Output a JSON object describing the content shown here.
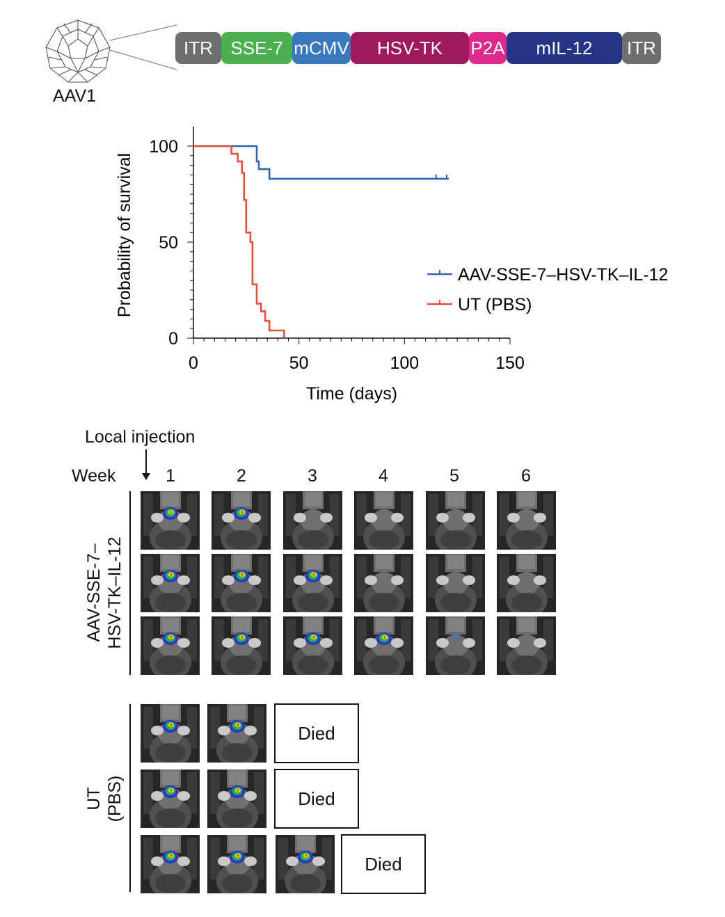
{
  "vector": {
    "capsid_label": "AAV1",
    "segments": [
      {
        "label": "ITR",
        "color": "#6d6e70"
      },
      {
        "label": "SSE-7",
        "color": "#4cb050"
      },
      {
        "label": "mCMV",
        "color": "#3a78bd"
      },
      {
        "label": "HSV-TK",
        "color": "#9d1a5e"
      },
      {
        "label": "P2A",
        "color": "#dd2a8d"
      },
      {
        "label": "mIL-12",
        "color": "#263486"
      },
      {
        "label": "ITR",
        "color": "#6d6e70"
      }
    ]
  },
  "chart_data": {
    "type": "line",
    "subtype": "kaplan-meier",
    "xlabel": "Time (days)",
    "ylabel": "Probability of survival",
    "xlim": [
      0,
      150
    ],
    "ylim": [
      0,
      100
    ],
    "xticks": [
      0,
      50,
      100,
      150
    ],
    "yticks": [
      0,
      50,
      100
    ],
    "legend_position": "right",
    "series": [
      {
        "name": "AAV-SSE-7–HSV-TK–IL-12",
        "color": "#3364ae",
        "steps": [
          [
            0,
            100
          ],
          [
            30,
            100
          ],
          [
            30,
            92
          ],
          [
            31,
            92
          ],
          [
            31,
            88
          ],
          [
            33,
            88
          ],
          [
            33,
            88
          ],
          [
            36,
            88
          ],
          [
            36,
            83
          ],
          [
            121,
            83
          ]
        ],
        "censored": [
          [
            115,
            83
          ],
          [
            120,
            83
          ]
        ]
      },
      {
        "name": "UT (PBS)",
        "color": "#e4513a",
        "steps": [
          [
            0,
            100
          ],
          [
            18,
            100
          ],
          [
            18,
            96
          ],
          [
            21,
            96
          ],
          [
            21,
            92
          ],
          [
            23,
            92
          ],
          [
            23,
            86
          ],
          [
            24,
            86
          ],
          [
            24,
            72
          ],
          [
            25,
            72
          ],
          [
            25,
            55
          ],
          [
            27,
            55
          ],
          [
            27,
            50
          ],
          [
            28,
            50
          ],
          [
            28,
            28
          ],
          [
            30,
            28
          ],
          [
            30,
            18
          ],
          [
            32,
            18
          ],
          [
            32,
            14
          ],
          [
            34,
            14
          ],
          [
            34,
            9
          ],
          [
            36,
            9
          ],
          [
            36,
            4
          ],
          [
            43,
            4
          ],
          [
            43,
            0
          ]
        ],
        "censored": []
      }
    ]
  },
  "imaging": {
    "injection_label": "Local injection",
    "week_label": "Week",
    "weeks": [
      "1",
      "2",
      "3",
      "4",
      "5",
      "6"
    ],
    "group1_label_line1": "AAV-SSE-7–",
    "group1_label_line2": "HSV-TK–IL-12",
    "group2_label_line1": "UT",
    "group2_label_line2": "(PBS)",
    "died_label": "Died",
    "group1_signal": [
      [
        1,
        1,
        0,
        0,
        0,
        0
      ],
      [
        1,
        1,
        1,
        0,
        0,
        0
      ],
      [
        1,
        1,
        1,
        1,
        0.3,
        0
      ]
    ],
    "group2_signal": [
      [
        1,
        1
      ],
      [
        1,
        1
      ],
      [
        1,
        1,
        1
      ]
    ]
  }
}
